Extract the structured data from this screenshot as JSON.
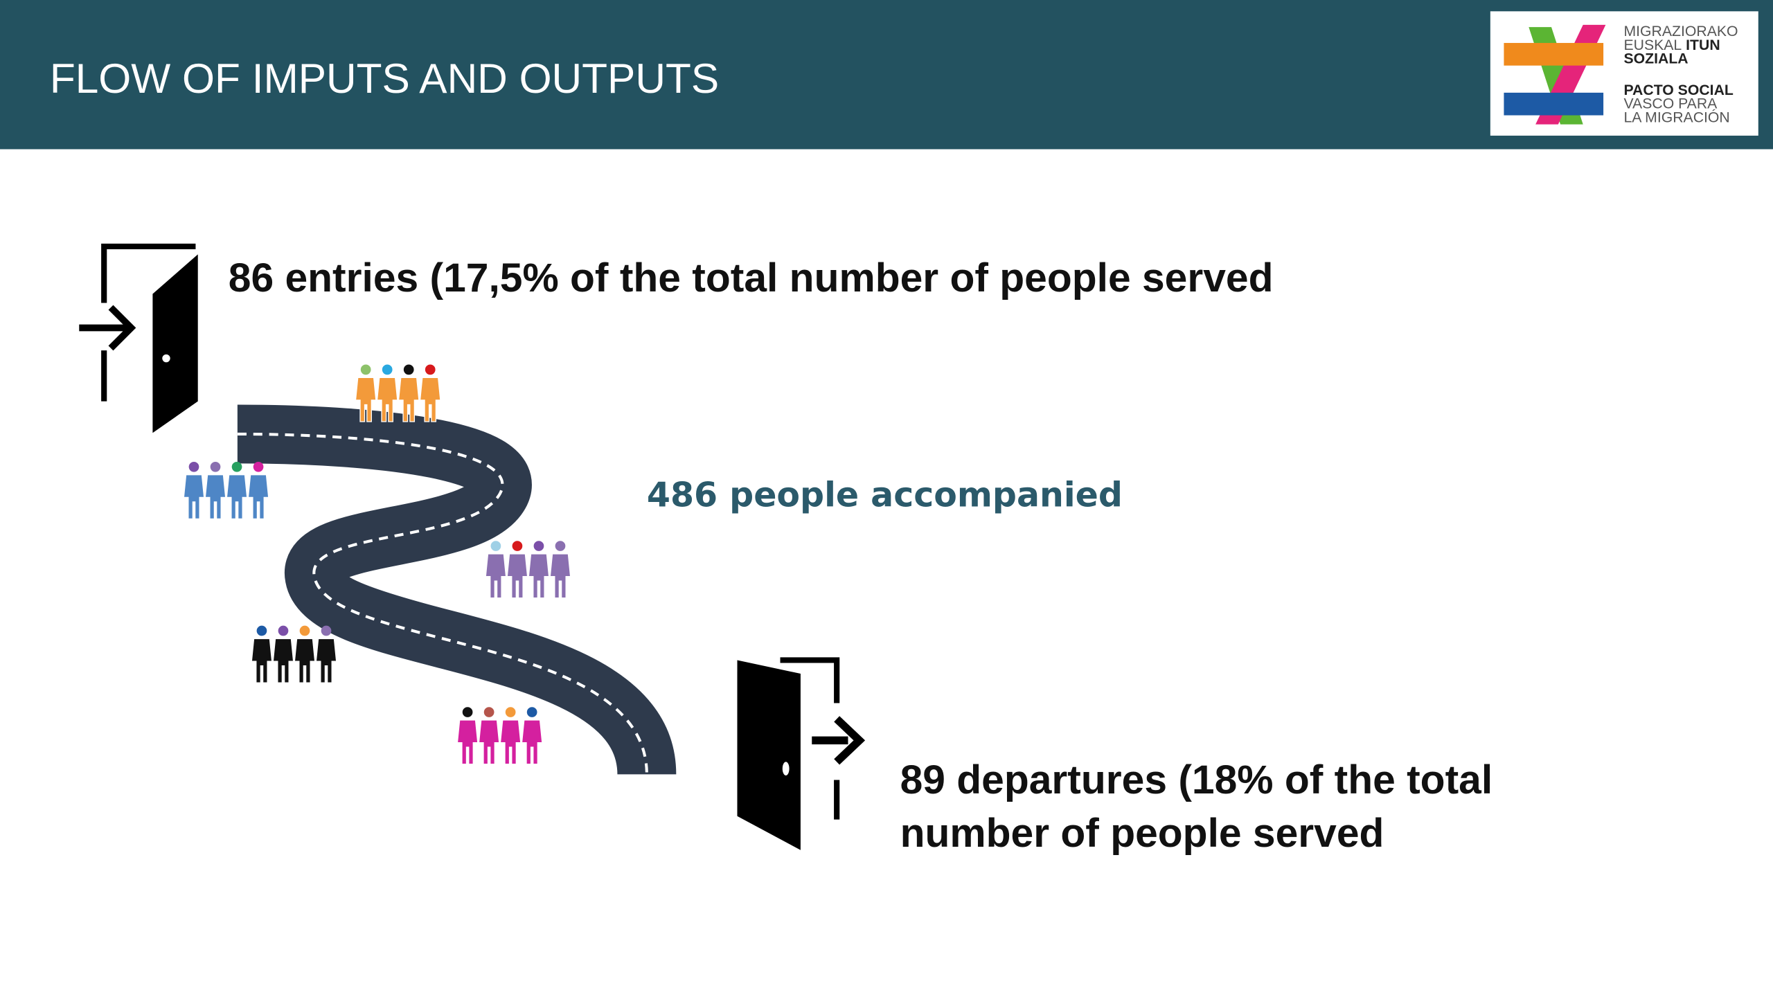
{
  "header": {
    "title": "FLOW OF IMPUTS AND OUTPUTS",
    "logo": {
      "line1": "MIGRAZIORAKO",
      "line2a": "EUSKAL",
      "line2b": "ITUN",
      "line3": "SOZIALA",
      "line4": "PACTO SOCIAL",
      "line5": "VASCO PARA",
      "line6": "LA MIGRACIÓN"
    }
  },
  "entries": "86 entries (17,5% of the total number of people served",
  "accompanied": "486 people accompanied",
  "departures": {
    "line1": "89 departures (18% of the total",
    "line2": "number of people served"
  }
}
